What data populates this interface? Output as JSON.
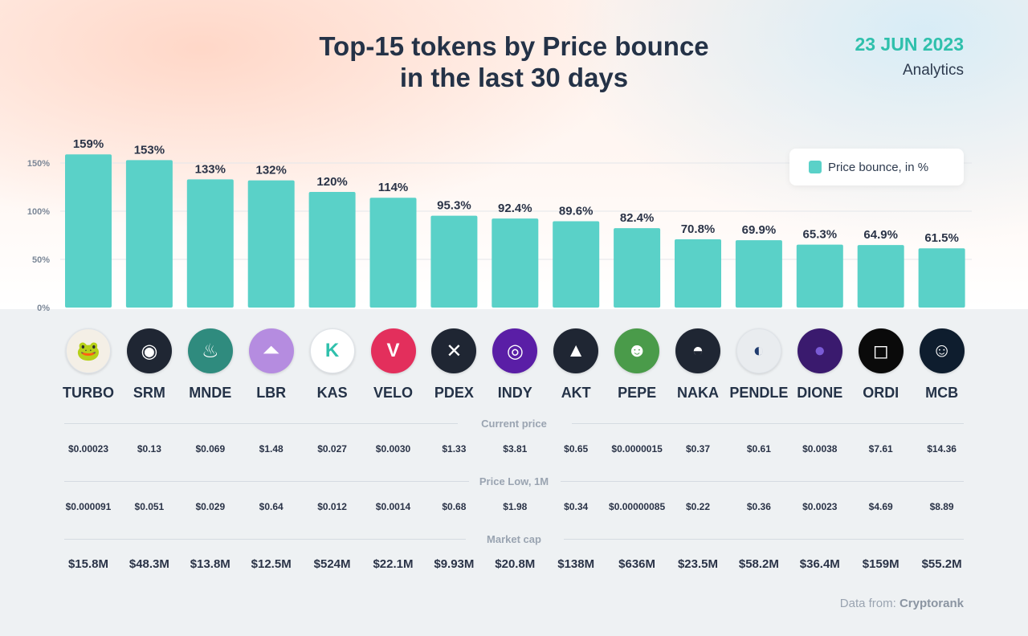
{
  "header": {
    "title_line1": "Top-15 tokens by Price bounce",
    "title_line2": "in the last 30 days",
    "date": "23 JUN 2023",
    "subtitle": "Analytics"
  },
  "legend": {
    "label": "Price bounce, in %",
    "color": "#5ad1c8"
  },
  "colors": {
    "bar": "#5ad1c8",
    "title": "#243247",
    "date": "#2fc0ac"
  },
  "chart_data": {
    "type": "bar",
    "categories": [
      "TURBO",
      "SRM",
      "MNDE",
      "LBR",
      "KAS",
      "VELO",
      "PDEX",
      "INDY",
      "AKT",
      "PEPE",
      "NAKA",
      "PENDLE",
      "DIONE",
      "ORDI",
      "MCB"
    ],
    "values": [
      159,
      153,
      133,
      132,
      120,
      114,
      95.3,
      92.4,
      89.6,
      82.4,
      70.8,
      69.9,
      65.3,
      64.9,
      61.5
    ],
    "value_labels": [
      "159%",
      "153%",
      "133%",
      "132%",
      "120%",
      "114%",
      "95.3%",
      "92.4%",
      "89.6%",
      "82.4%",
      "70.8%",
      "69.9%",
      "65.3%",
      "64.9%",
      "61.5%"
    ],
    "series": [
      {
        "name": "Price bounce, in %",
        "values": [
          159,
          153,
          133,
          132,
          120,
          114,
          95.3,
          92.4,
          89.6,
          82.4,
          70.8,
          69.9,
          65.3,
          64.9,
          61.5
        ]
      }
    ],
    "yticks": [
      "0%",
      "50%",
      "100%",
      "150%"
    ],
    "ylim": [
      0,
      160
    ],
    "grid": true,
    "legend_position": "top-right"
  },
  "tokens": [
    {
      "symbol": "TURBO",
      "icon": "frog-toad-icon",
      "color": "#f4efe6"
    },
    {
      "symbol": "SRM",
      "icon": "serum-drop-icon",
      "color": "#1f2633"
    },
    {
      "symbol": "MNDE",
      "icon": "chef-hat-icon",
      "color": "#2f8b7e"
    },
    {
      "symbol": "LBR",
      "icon": "lybra-icon",
      "color": "#b58ce0"
    },
    {
      "symbol": "KAS",
      "icon": "kaspa-k-icon",
      "color": "#ffffff"
    },
    {
      "symbol": "VELO",
      "icon": "velo-icon",
      "color": "#e32f5c"
    },
    {
      "symbol": "PDEX",
      "icon": "polkadex-x-icon",
      "color": "#1f2633"
    },
    {
      "symbol": "INDY",
      "icon": "indigo-eye-icon",
      "color": "#5a1ea6"
    },
    {
      "symbol": "AKT",
      "icon": "akash-icon",
      "color": "#1f2633"
    },
    {
      "symbol": "PEPE",
      "icon": "pepe-frog-icon",
      "color": "#4a9b4a"
    },
    {
      "symbol": "NAKA",
      "icon": "nakamoto-mask-icon",
      "color": "#1f2633"
    },
    {
      "symbol": "PENDLE",
      "icon": "pendle-icon",
      "color": "#e9ecef"
    },
    {
      "symbol": "DIONE",
      "icon": "dione-orb-icon",
      "color": "#3a1a6e"
    },
    {
      "symbol": "ORDI",
      "icon": "ordi-icon",
      "color": "#0a0a0a"
    },
    {
      "symbol": "MCB",
      "icon": "mcb-icon",
      "color": "#0e1d2e"
    }
  ],
  "sections": {
    "current_price": {
      "label": "Current price",
      "values": [
        "$0.00023",
        "$0.13",
        "$0.069",
        "$1.48",
        "$0.027",
        "$0.0030",
        "$1.33",
        "$3.81",
        "$0.65",
        "$0.0000015",
        "$0.37",
        "$0.61",
        "$0.0038",
        "$7.61",
        "$14.36"
      ]
    },
    "price_low": {
      "label": "Price Low, 1M",
      "values": [
        "$0.000091",
        "$0.051",
        "$0.029",
        "$0.64",
        "$0.012",
        "$0.0014",
        "$0.68",
        "$1.98",
        "$0.34",
        "$0.00000085",
        "$0.22",
        "$0.36",
        "$0.0023",
        "$4.69",
        "$8.89"
      ]
    },
    "market_cap": {
      "label": "Market cap",
      "values": [
        "$15.8M",
        "$48.3M",
        "$13.8M",
        "$12.5M",
        "$524M",
        "$22.1M",
        "$9.93M",
        "$20.8M",
        "$138M",
        "$636M",
        "$23.5M",
        "$58.2M",
        "$36.4M",
        "$159M",
        "$55.2M"
      ]
    }
  },
  "footer": {
    "source_prefix": "Data from:",
    "source_name": "Cryptorank"
  }
}
